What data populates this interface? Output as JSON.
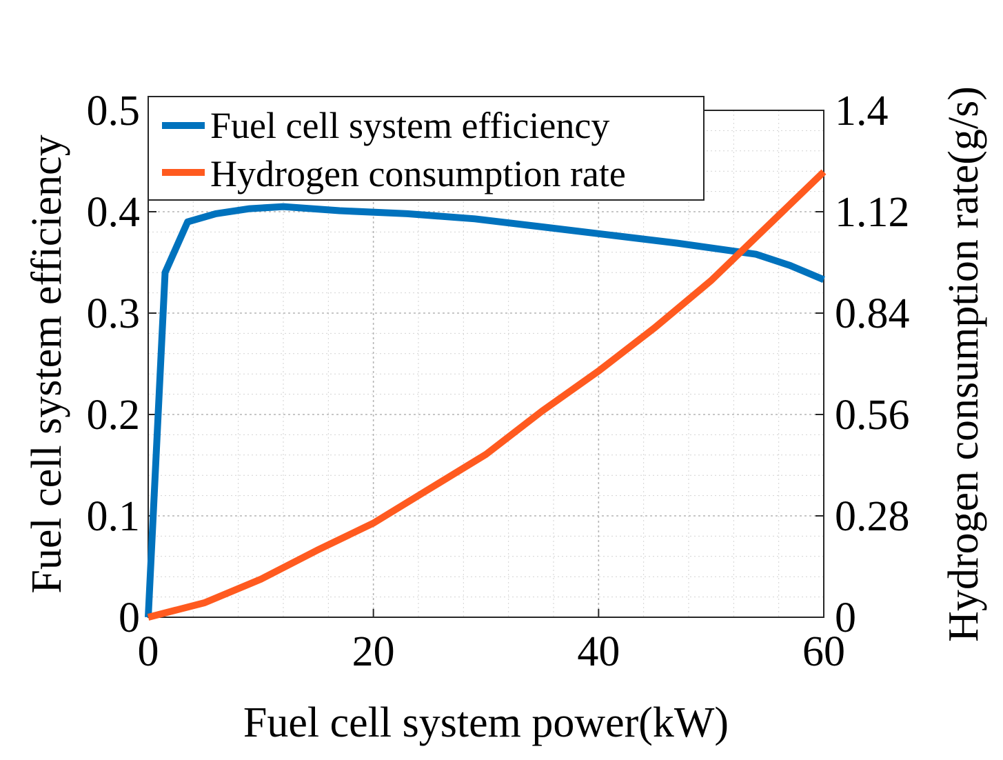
{
  "chart_data": {
    "type": "line",
    "title": "",
    "xlabel": "Fuel cell system power(kW)",
    "ylabel_left": "Fuel cell system efficiency",
    "ylabel_right": "Hydrogen consumption rate(g/s)",
    "xlim": [
      0,
      60
    ],
    "ylim_left": [
      0,
      0.5
    ],
    "ylim_right": [
      0,
      1.4
    ],
    "x_ticks": [
      "0",
      "20",
      "40",
      "60"
    ],
    "y_left_ticks": [
      "0",
      "0.1",
      "0.2",
      "0.3",
      "0.4",
      "0.5"
    ],
    "y_right_ticks": [
      "0",
      "0.28",
      "0.56",
      "0.84",
      "1.12",
      "1.4"
    ],
    "grid": true,
    "minor_grid": true,
    "legend_position": "top-left",
    "series": [
      {
        "name": "Fuel cell system efficiency",
        "axis": "left",
        "color": "#0072BD",
        "x": [
          0,
          1.5,
          3.5,
          6,
          9,
          12,
          17,
          23,
          29,
          35,
          41,
          47,
          54,
          57,
          60
        ],
        "y": [
          0,
          0.34,
          0.39,
          0.398,
          0.403,
          0.405,
          0.401,
          0.398,
          0.393,
          0.385,
          0.377,
          0.369,
          0.358,
          0.347,
          0.333
        ]
      },
      {
        "name": "Hydrogen consumption rate",
        "axis": "right",
        "color": "#FF5A1F",
        "x": [
          0,
          5,
          10,
          15,
          20,
          25,
          30,
          35,
          40,
          45,
          50,
          55,
          60
        ],
        "y": [
          0,
          0.04,
          0.105,
          0.185,
          0.26,
          0.355,
          0.45,
          0.57,
          0.68,
          0.8,
          0.93,
          1.08,
          1.23
        ]
      }
    ]
  }
}
